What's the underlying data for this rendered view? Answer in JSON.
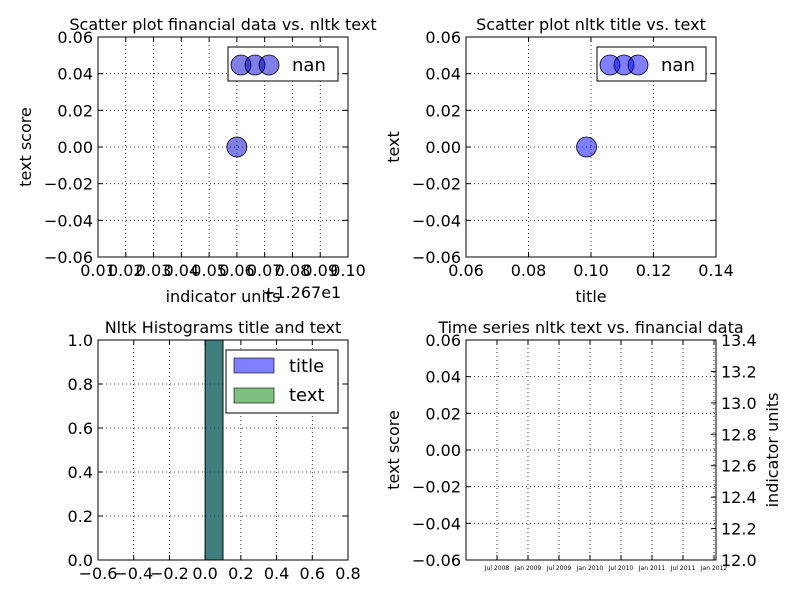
{
  "chart_data": [
    {
      "type": "scatter",
      "title": "Scatter plot financial data vs. nltk text",
      "xlabel": "indicator units",
      "ylabel": "text score",
      "x_offset_label": "+1.267e1",
      "xlim": [
        0.01,
        0.1
      ],
      "ylim": [
        -0.06,
        0.06
      ],
      "xticks": [
        "0.01",
        "0.02",
        "0.03",
        "0.04",
        "0.05",
        "0.06",
        "0.07",
        "0.08",
        "0.09",
        "0.10"
      ],
      "yticks": [
        "−0.06",
        "−0.04",
        "−0.02",
        "0.00",
        "0.02",
        "0.04",
        "0.06"
      ],
      "grid": true,
      "legend": {
        "entries": [
          "nan"
        ],
        "placement": "top-right"
      },
      "points": [
        {
          "x": 0.06,
          "y": 0.0
        }
      ],
      "point_color": "#0000cc"
    },
    {
      "type": "scatter",
      "title": "Scatter plot nltk title vs. text",
      "xlabel": "title",
      "ylabel": "text",
      "xlim": [
        0.06,
        0.15
      ],
      "ylim": [
        -0.06,
        0.06
      ],
      "xticks": [
        "0.06",
        "0.08",
        "0.10",
        "0.12",
        "0.14"
      ],
      "yticks": [
        "−0.06",
        "−0.04",
        "−0.02",
        "0.00",
        "0.02",
        "0.04",
        "0.06"
      ],
      "grid": true,
      "legend": {
        "entries": [
          "nan"
        ],
        "placement": "top-right"
      },
      "points": [
        {
          "x": 0.1034,
          "y": 0.0
        }
      ],
      "point_color": "#0000ff"
    },
    {
      "type": "bar",
      "title": "Nltk Histograms title and text",
      "xlim": [
        -0.6,
        0.8
      ],
      "ylim": [
        0,
        1.0
      ],
      "xticks": [
        "−0.6",
        "−0.4",
        "−0.2",
        "0.0",
        "0.2",
        "0.4",
        "0.6",
        "0.8"
      ],
      "yticks": [
        "0.0",
        "0.2",
        "0.4",
        "0.6",
        "0.8",
        "1.0"
      ],
      "grid": true,
      "legend": {
        "entries": [
          "title",
          "text"
        ],
        "placement": "top-right"
      },
      "series": [
        {
          "name": "title",
          "bins": [
            {
              "x0": 0.0,
              "x1": 0.1,
              "value": 1.0
            }
          ],
          "color": "#0000ff"
        },
        {
          "name": "text",
          "bins": [
            {
              "x0": 0.0,
              "x1": 0.1,
              "value": 1.0
            }
          ],
          "color": "#008000"
        }
      ]
    },
    {
      "type": "line",
      "title": "Time series nltk text vs. financial data",
      "ylabel": "text score",
      "y2label": "indicator units",
      "ylim": [
        -0.06,
        0.06
      ],
      "y2lim": [
        12.0,
        13.4
      ],
      "yticks": [
        "−0.06",
        "−0.04",
        "−0.02",
        "0.00",
        "0.02",
        "0.04",
        "0.06"
      ],
      "y2ticks": [
        "12.0",
        "12.2",
        "12.4",
        "12.6",
        "12.8",
        "13.0",
        "13.2",
        "13.4"
      ],
      "xticks": [
        "Jul 2008",
        "Jan 2009",
        "Jul 2009",
        "Jan 2010",
        "Jul 2010",
        "Jan 2011",
        "Jul 2011",
        "Jan 2012"
      ],
      "grid": true,
      "series": []
    }
  ]
}
